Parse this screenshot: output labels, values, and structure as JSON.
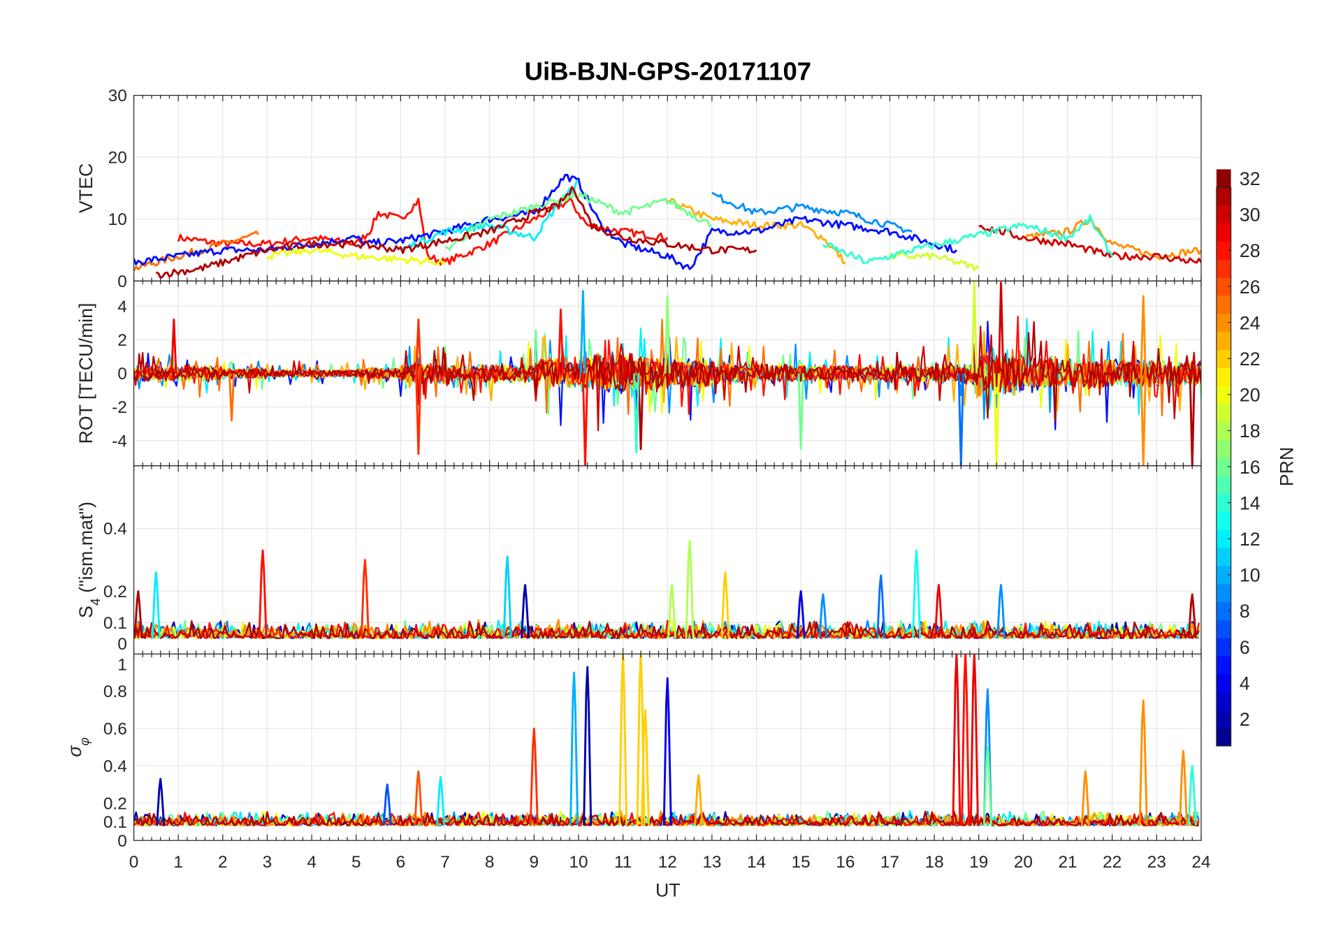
{
  "chart_data": {
    "type": "line",
    "title": "UiB-BJN-GPS-20171107",
    "xlabel": "UT",
    "xlim": [
      0,
      24
    ],
    "xticks": [
      "0",
      "1",
      "2",
      "3",
      "4",
      "5",
      "6",
      "7",
      "8",
      "9",
      "10",
      "11",
      "12",
      "13",
      "14",
      "15",
      "16",
      "17",
      "18",
      "19",
      "20",
      "21",
      "22",
      "23",
      "24"
    ],
    "colorbar": {
      "label": "PRN",
      "range": [
        1,
        32
      ],
      "colormap": "jet",
      "ticks": [
        "2",
        "4",
        "6",
        "8",
        "10",
        "12",
        "14",
        "16",
        "18",
        "20",
        "22",
        "24",
        "26",
        "28",
        "30",
        "32"
      ]
    },
    "panels": [
      {
        "id": "vtec",
        "ylabel": "VTEC",
        "ylim": [
          0,
          30
        ],
        "yticks": [
          "0",
          "10",
          "20",
          "30"
        ],
        "ytick_values": [
          0,
          10,
          20,
          30
        ],
        "series": [
          {
            "prn": 28,
            "points": [
              [
                1,
                7
              ],
              [
                2,
                6
              ],
              [
                3,
                6
              ],
              [
                4,
                7
              ],
              [
                5,
                6
              ],
              [
                5.3,
                8
              ],
              [
                5.5,
                11
              ],
              [
                6,
                10
              ],
              [
                6.4,
                13
              ],
              [
                6.6,
                4
              ],
              [
                7,
                3
              ],
              [
                8,
                6
              ],
              [
                9,
                10
              ],
              [
                9.8,
                13
              ],
              [
                10.2,
                9
              ],
              [
                11,
                8
              ],
              [
                12,
                7
              ]
            ]
          },
          {
            "prn": 25,
            "points": [
              [
                0,
                2
              ],
              [
                1,
                4
              ],
              [
                2,
                6
              ],
              [
                2.8,
                7.5
              ]
            ]
          },
          {
            "prn": 23,
            "points": [
              [
                12,
                13
              ],
              [
                13,
                10
              ],
              [
                14,
                9
              ],
              [
                15,
                9
              ],
              [
                15.5,
                7
              ],
              [
                16,
                3
              ]
            ]
          },
          {
            "prn": 24,
            "points": [
              [
                20,
                7
              ],
              [
                21,
                8
              ],
              [
                21.5,
                10
              ],
              [
                22,
                6
              ],
              [
                23,
                4
              ],
              [
                24,
                5
              ]
            ]
          },
          {
            "prn": 5,
            "points": [
              [
                0,
                3
              ],
              [
                1,
                4
              ],
              [
                2,
                5
              ],
              [
                3,
                5
              ],
              [
                4,
                6
              ],
              [
                5,
                7
              ],
              [
                5.2,
                6
              ],
              [
                6,
                6.5
              ],
              [
                7,
                8
              ],
              [
                8,
                10
              ],
              [
                9,
                11
              ],
              [
                9.7,
                17
              ],
              [
                10,
                16
              ],
              [
                10.5,
                9
              ],
              [
                11,
                6
              ],
              [
                12,
                4
              ],
              [
                12.5,
                2
              ],
              [
                13,
                8
              ],
              [
                14,
                8
              ],
              [
                15,
                10
              ],
              [
                16,
                9
              ],
              [
                17,
                8
              ],
              [
                18,
                6
              ],
              [
                18.5,
                5
              ]
            ]
          },
          {
            "prn": 9,
            "points": [
              [
                13,
                14
              ],
              [
                14,
                11
              ],
              [
                15,
                12
              ],
              [
                16,
                11
              ],
              [
                17,
                9
              ],
              [
                17.5,
                8
              ]
            ]
          },
          {
            "prn": 12,
            "points": [
              [
                6,
                5
              ],
              [
                7,
                8
              ],
              [
                8,
                9
              ],
              [
                9,
                7
              ],
              [
                9.5,
                12
              ],
              [
                10,
                16
              ]
            ]
          },
          {
            "prn": 16,
            "points": [
              [
                7,
                5
              ],
              [
                8,
                10
              ],
              [
                9,
                12
              ],
              [
                10,
                14
              ],
              [
                11,
                11
              ],
              [
                12,
                13
              ],
              [
                13,
                9
              ]
            ]
          },
          {
            "prn": 20,
            "points": [
              [
                3,
                4
              ],
              [
                4,
                5
              ],
              [
                5,
                4
              ],
              [
                6,
                3.5
              ],
              [
                7,
                3
              ]
            ]
          },
          {
            "prn": 19,
            "points": [
              [
                17,
                4
              ],
              [
                18,
                4
              ],
              [
                18.5,
                3
              ],
              [
                19,
                2
              ]
            ]
          },
          {
            "prn": 31,
            "points": [
              [
                0.5,
                1
              ],
              [
                1.5,
                2
              ],
              [
                2,
                3
              ],
              [
                3,
                5
              ],
              [
                4,
                6
              ],
              [
                5,
                6
              ],
              [
                6,
                5
              ],
              [
                8,
                8
              ],
              [
                9,
                11
              ],
              [
                9.5,
                12
              ],
              [
                9.9,
                15
              ],
              [
                10.3,
                9
              ],
              [
                11,
                7
              ],
              [
                12,
                6
              ],
              [
                13,
                5
              ],
              [
                14,
                5
              ]
            ]
          },
          {
            "prn": 30,
            "points": [
              [
                19,
                9
              ],
              [
                20,
                7
              ],
              [
                21,
                6
              ],
              [
                22,
                4
              ],
              [
                23,
                4
              ],
              [
                24,
                3
              ]
            ]
          },
          {
            "prn": 14,
            "points": [
              [
                15.5,
                6
              ],
              [
                16.5,
                3
              ],
              [
                17,
                4
              ],
              [
                17.5,
                5
              ],
              [
                20,
                9
              ],
              [
                21,
                7
              ],
              [
                21.5,
                10
              ],
              [
                22,
                4
              ]
            ]
          }
        ]
      },
      {
        "id": "rot",
        "ylabel": "ROT [TECU/min]",
        "ylim": [
          -5.5,
          5.5
        ],
        "yticks": [
          "-4",
          "-2",
          "0",
          "2",
          "4"
        ],
        "ytick_values": [
          -4,
          -2,
          0,
          2,
          4
        ],
        "activity_by_hour": [
          0.8,
          0.9,
          0.6,
          0.4,
          0.4,
          0.6,
          1.2,
          1.0,
          1.0,
          1.6,
          2.2,
          2.0,
          1.6,
          1.2,
          1.0,
          0.9,
          0.9,
          1.0,
          1.2,
          2.4,
          1.8,
          1.6,
          1.4,
          1.5,
          1.5
        ],
        "spikes": [
          [
            0.9,
            3.2,
            29
          ],
          [
            2.2,
            -2.8,
            25
          ],
          [
            6.4,
            -4.8,
            27
          ],
          [
            6.4,
            3.2,
            27
          ],
          [
            9.6,
            3.8,
            28
          ],
          [
            10.1,
            4.9,
            10
          ],
          [
            10.15,
            -5.5,
            28
          ],
          [
            11.4,
            -4.5,
            31
          ],
          [
            11.3,
            -4.7,
            14
          ],
          [
            12.0,
            4.6,
            17
          ],
          [
            15.0,
            -4.5,
            16
          ],
          [
            18.6,
            -5.5,
            8
          ],
          [
            18.9,
            5.5,
            19
          ],
          [
            19.5,
            5.4,
            30
          ],
          [
            19.4,
            -5.5,
            20
          ],
          [
            22.7,
            -5.5,
            24
          ],
          [
            23.8,
            -5.5,
            31
          ],
          [
            22.7,
            4.6,
            24
          ]
        ]
      },
      {
        "id": "s4",
        "ylabel": "S4 (\"ism.mat\")",
        "ylim": [
          0,
          0.6
        ],
        "yticks": [
          "0",
          "0.1",
          "0.2",
          "0.4"
        ],
        "ytick_values": [
          0,
          0.1,
          0.2,
          0.4
        ],
        "baseline": 0.05,
        "spikes": [
          [
            0.1,
            0.2,
            31
          ],
          [
            0.5,
            0.26,
            12
          ],
          [
            2.9,
            0.33,
            28
          ],
          [
            5.2,
            0.3,
            27
          ],
          [
            8.4,
            0.31,
            11
          ],
          [
            8.8,
            0.22,
            2
          ],
          [
            12.5,
            0.36,
            18
          ],
          [
            12.1,
            0.22,
            18
          ],
          [
            13.3,
            0.26,
            22
          ],
          [
            15.0,
            0.2,
            4
          ],
          [
            15.5,
            0.19,
            9
          ],
          [
            16.8,
            0.25,
            8
          ],
          [
            17.6,
            0.33,
            13
          ],
          [
            18.1,
            0.22,
            29
          ],
          [
            19.5,
            0.22,
            9
          ],
          [
            23.8,
            0.19,
            31
          ]
        ]
      },
      {
        "id": "sigma_phi",
        "ylabel": "σφ",
        "ylim": [
          0,
          1
        ],
        "yticks": [
          "0",
          "0.1",
          "0.2",
          "0.4",
          "0.6",
          "0.8",
          "1"
        ],
        "ytick_values": [
          0,
          0.1,
          0.2,
          0.4,
          0.6,
          0.8,
          1
        ],
        "baseline": 0.08,
        "spikes": [
          [
            0.6,
            0.33,
            2
          ],
          [
            5.7,
            0.3,
            7
          ],
          [
            6.4,
            0.37,
            26
          ],
          [
            6.9,
            0.34,
            12
          ],
          [
            9.0,
            0.6,
            27
          ],
          [
            9.9,
            0.9,
            10
          ],
          [
            10.2,
            0.93,
            2
          ],
          [
            11.0,
            1.0,
            22
          ],
          [
            11.4,
            1.0,
            22
          ],
          [
            11.5,
            0.7,
            22
          ],
          [
            12.0,
            0.87,
            4
          ],
          [
            12.7,
            0.35,
            23
          ],
          [
            18.5,
            1.0,
            29
          ],
          [
            18.7,
            1.0,
            28
          ],
          [
            18.9,
            1.0,
            29
          ],
          [
            19.2,
            0.81,
            9
          ],
          [
            19.2,
            0.5,
            16
          ],
          [
            21.4,
            0.37,
            24
          ],
          [
            22.7,
            0.75,
            24
          ],
          [
            23.6,
            0.48,
            24
          ],
          [
            23.8,
            0.4,
            14
          ]
        ]
      }
    ]
  }
}
